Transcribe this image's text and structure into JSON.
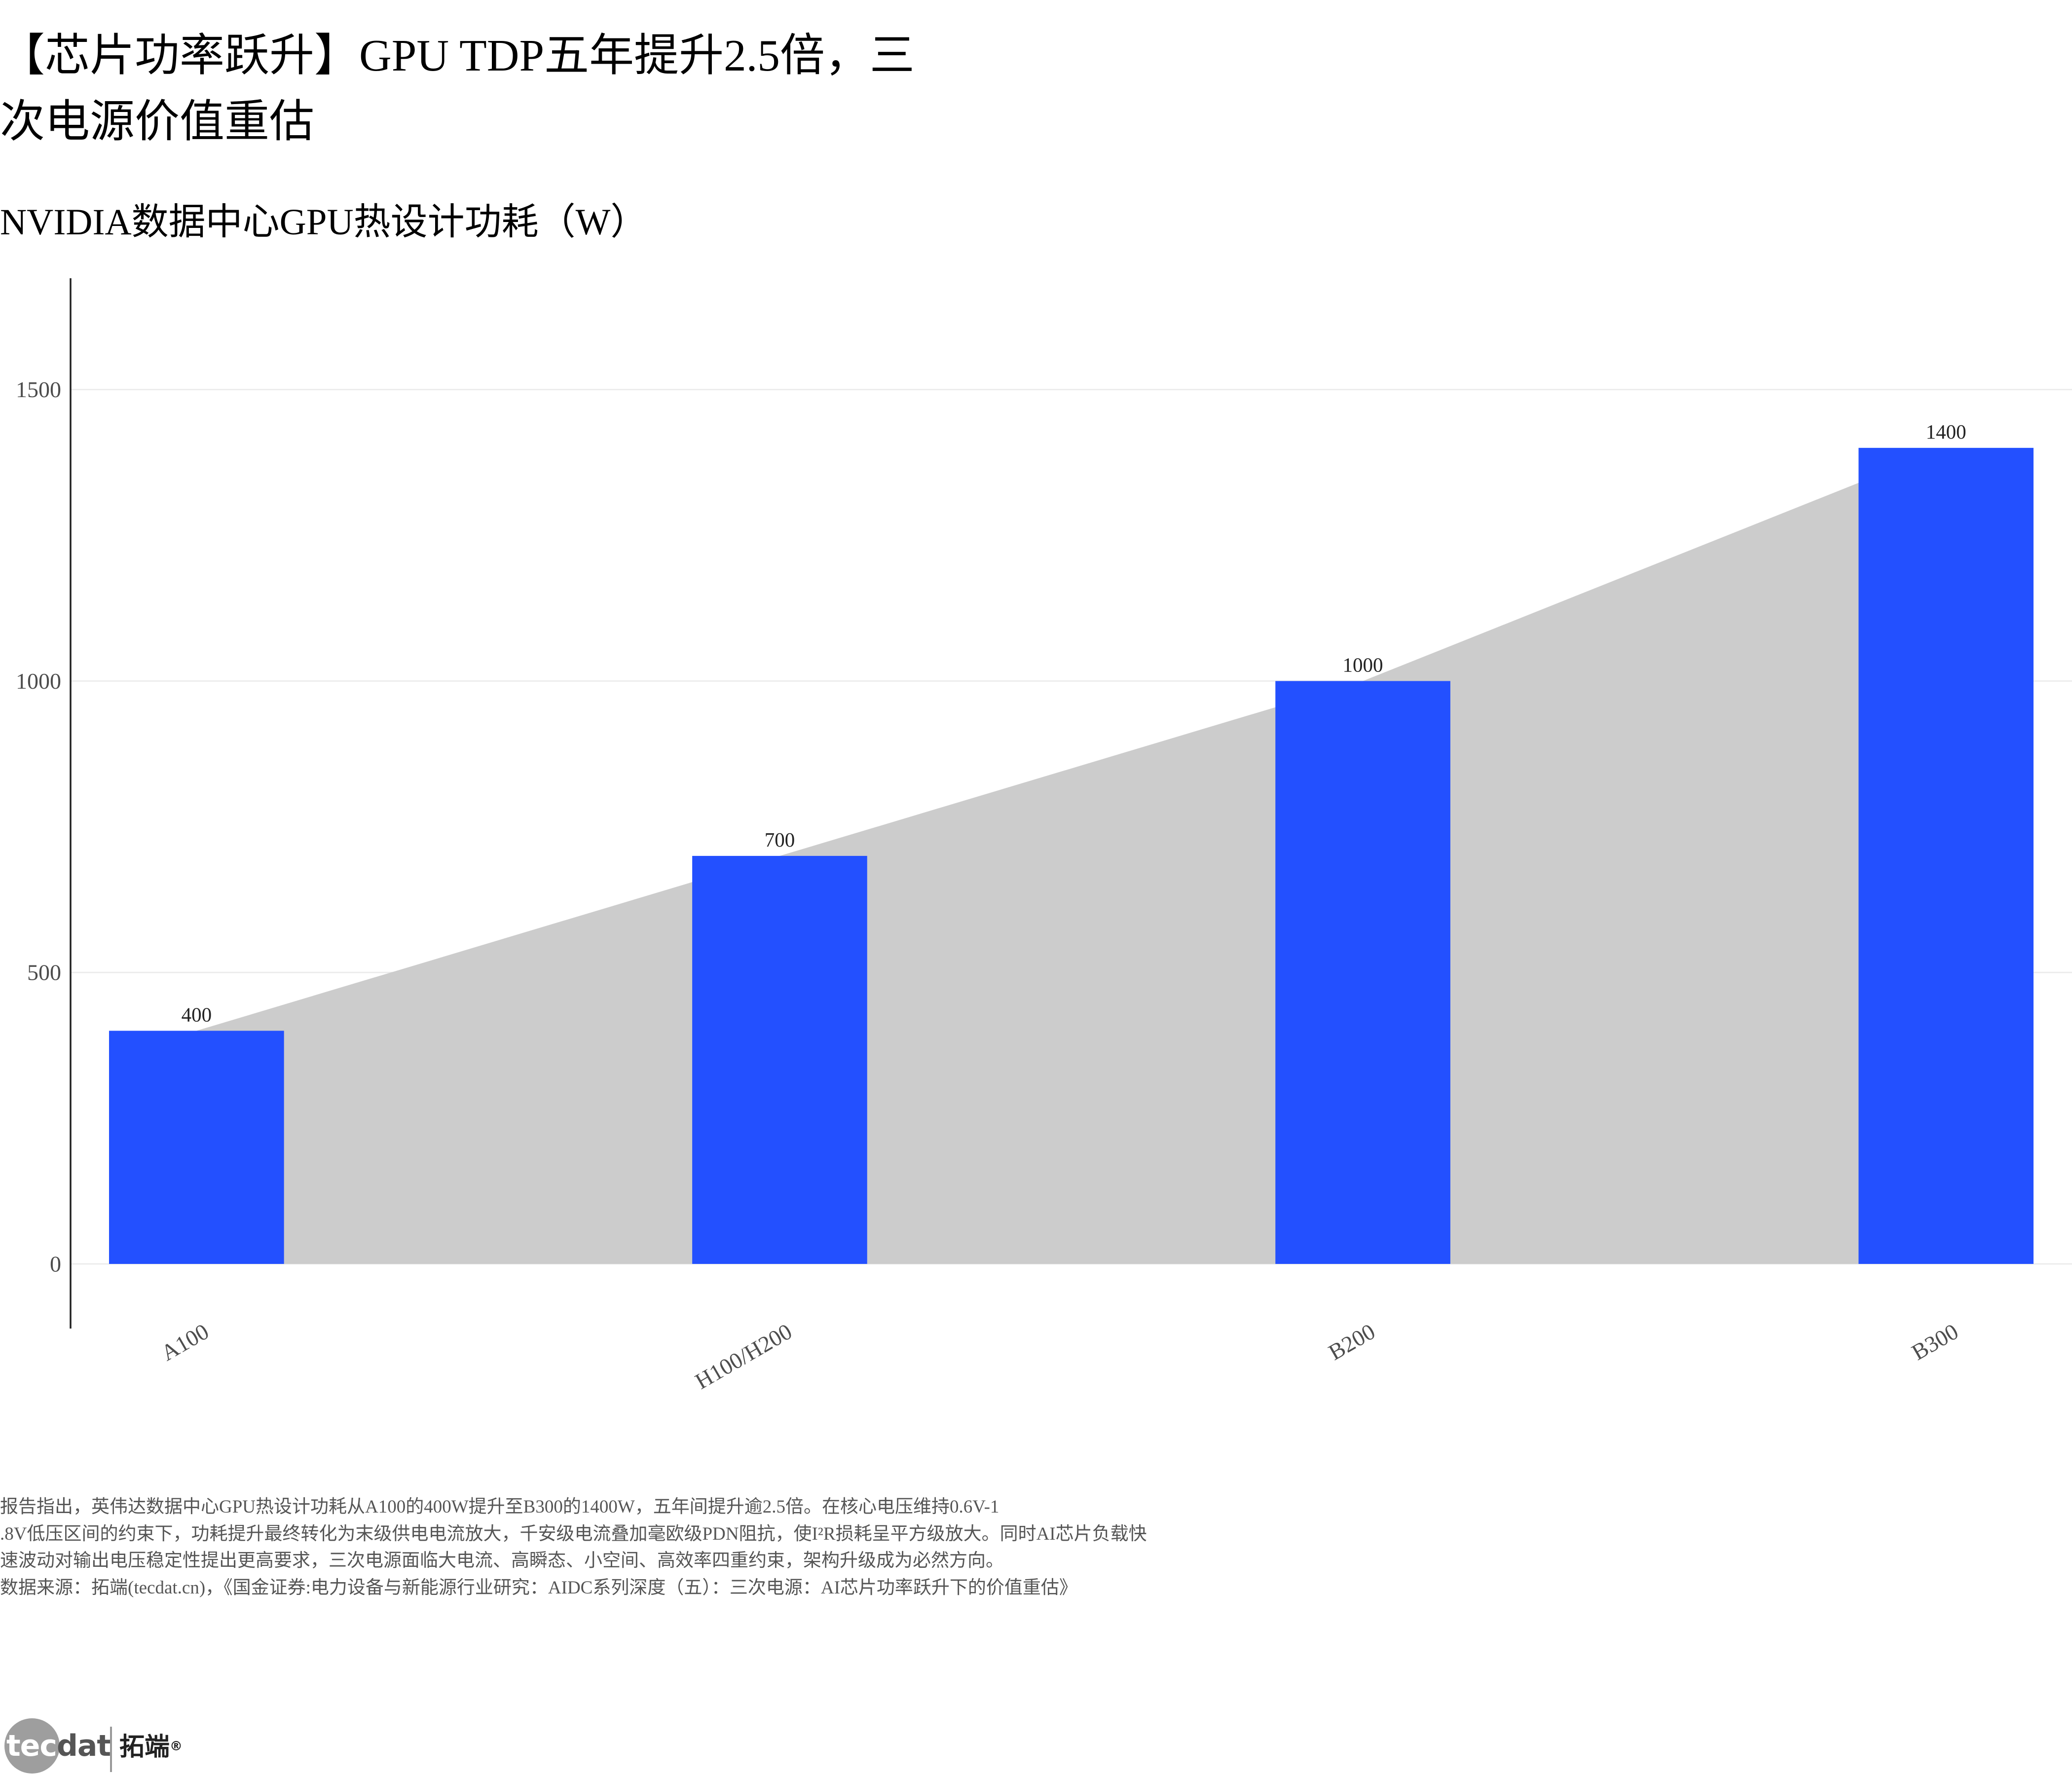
{
  "page": {
    "title": "【芯片功率跃升】GPU TDP五年提升2.5倍，三次电源价值重估"
  },
  "chart_data": {
    "type": "bar",
    "title": "NVIDIA数据中心GPU热设计功耗（W）",
    "xlabel": "",
    "ylabel": "",
    "categories": [
      "A100",
      "H100/H200",
      "B200",
      "B300"
    ],
    "values": [
      400,
      700,
      1000,
      1400
    ],
    "value_labels_shown": true,
    "yticks": [
      0,
      500,
      1000,
      1500
    ],
    "ylim": [
      -77,
      1691
    ],
    "grid": "horizontal",
    "legend": "none",
    "bar_color": "#2350ff",
    "area_overlay": {
      "values": [
        400,
        700,
        1000,
        1400
      ],
      "color": "#cccccc"
    }
  },
  "notes": {
    "lines": [
      "报告指出，英伟达数据中心GPU热设计功耗从A100的400W提升至B300的1400W，五年间提升逾2.5倍。在核心电压维持0.6V-1",
      ".8V低压区间的约束下，功耗提升最终转化为末级供电电流放大，千安级电流叠加毫欧级PDN阻抗，使I²R损耗呈平方级放大。同时AI芯片负载快",
      "速波动对输出电压稳定性提出更高要求，三次电源面临大电流、高瞬态、小空间、高效率四重约束，架构升级成为必然方向。"
    ],
    "source": "数据来源：拓端(tecdat.cn)，《国金证券:电力设备与新能源行业研究：AIDC系列深度（五）：三次电源：AI芯片功率跃升下的价值重估》"
  },
  "logo": {
    "mark_left": "tec",
    "mark_right": "dat",
    "name_cn": "拓端",
    "registered": "®"
  },
  "colors": {
    "text": "#000000",
    "note_text": "#555555",
    "axis_text": "#4d4d4d",
    "axis_line": "#222222",
    "value_label": "#222222",
    "gridline": "#ebebeb",
    "logo_grey": "#9e9e9e"
  }
}
